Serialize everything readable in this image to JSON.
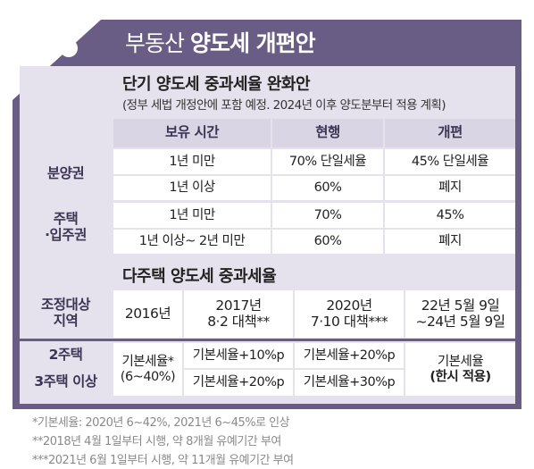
{
  "title": {
    "prefix": "부동산",
    "main": "양도세 개편안"
  },
  "section1": {
    "title": "단기 양도세 중과세율 완화안",
    "subtitle": "(정부 세법 개정안에 포함 예정. 2024년 이후 양도분부터 적용 계획)",
    "headers": {
      "holding": "보유 시간",
      "current": "현행",
      "reform": "개편"
    },
    "groups": [
      {
        "label": "분양권",
        "rows": [
          {
            "period": "1년 미만",
            "current": "70% 단일세율",
            "reform": "45% 단일세율"
          },
          {
            "period": "1년 이상",
            "current": "60%",
            "reform": "폐지"
          }
        ]
      },
      {
        "label_line1": "주택",
        "label_line2": "·입주권",
        "rows": [
          {
            "period": "1년 미만",
            "current": "70%",
            "reform": "45%"
          },
          {
            "period": "1년 이상~ 2년 미만",
            "current": "60%",
            "reform": "폐지"
          }
        ]
      }
    ]
  },
  "section2": {
    "title": "다주택 양도세 중과세율",
    "corner": {
      "line1": "조정대상",
      "line2": "지역"
    },
    "headers": [
      {
        "line1": "2016년",
        "line2": ""
      },
      {
        "line1": "2017년",
        "line2": "8·2 대책**"
      },
      {
        "line1": "2020년",
        "line2": "7·10 대책***"
      },
      {
        "line1": "22년 5월 9일",
        "line2": "~24년 5월 9일"
      }
    ],
    "rows": [
      {
        "label": "2주택",
        "y2017": "기본세율+10%p",
        "y2020": "기본세율+20%p"
      },
      {
        "label": "3주택 이상",
        "y2017": "기본세율+20%p",
        "y2020": "기본세율+30%p"
      }
    ],
    "y2016": {
      "line1": "기본세율*",
      "line2": "(6~40%)"
    },
    "temp": {
      "line1": "기본세율",
      "line2": "(한시 적용)"
    }
  },
  "footnotes": [
    "*기본세율: 2020년 6~42%, 2021년 6~45%로 인상",
    "**2018년 4월 1일부터 시행, 약 8개월 유예기간 부여",
    "***2021년 6월 1일부터 시행, 약 11개월 유예기간 부여"
  ],
  "colors": {
    "tag": "#6a5d85",
    "panel": "#e5e1ec",
    "header_row": "#d6d1e0",
    "row_label": "#3e3454"
  }
}
